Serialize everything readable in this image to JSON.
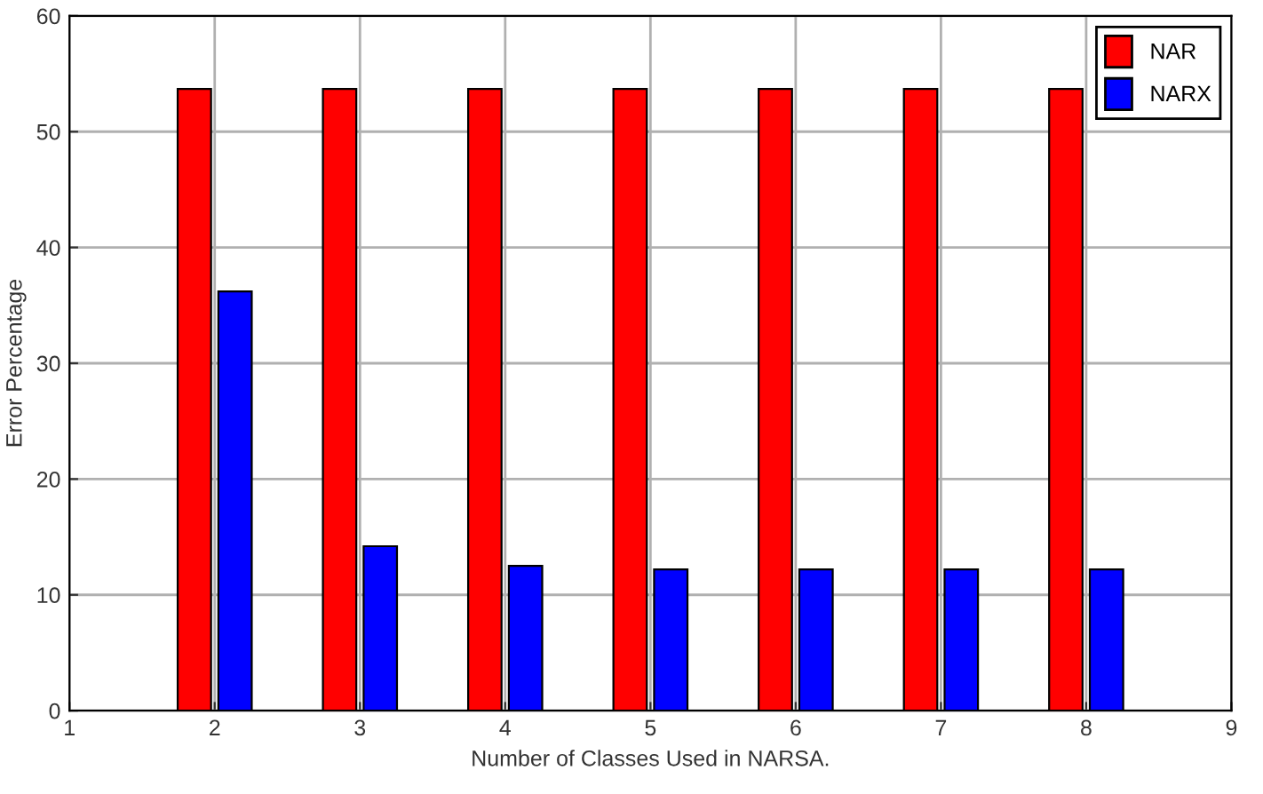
{
  "chart_data": {
    "type": "bar",
    "xlabel": "Number of Classes Used in NARSA.",
    "ylabel": "Error Percentage",
    "x": [
      2,
      3,
      4,
      5,
      6,
      7,
      8
    ],
    "series": [
      {
        "name": "NAR",
        "color": "#ff0000",
        "values": [
          53.7,
          53.7,
          53.7,
          53.7,
          53.7,
          53.7,
          53.7
        ]
      },
      {
        "name": "NARX",
        "color": "#0000ff",
        "values": [
          36.2,
          14.2,
          12.5,
          12.2,
          12.2,
          12.2,
          12.2
        ]
      }
    ],
    "xlim": [
      1,
      9
    ],
    "xticks": [
      1,
      2,
      3,
      4,
      5,
      6,
      7,
      8,
      9
    ],
    "ylim": [
      0,
      60
    ],
    "yticks": [
      0,
      10,
      20,
      30,
      40,
      50,
      60
    ],
    "grid": true,
    "legend": "top right"
  }
}
